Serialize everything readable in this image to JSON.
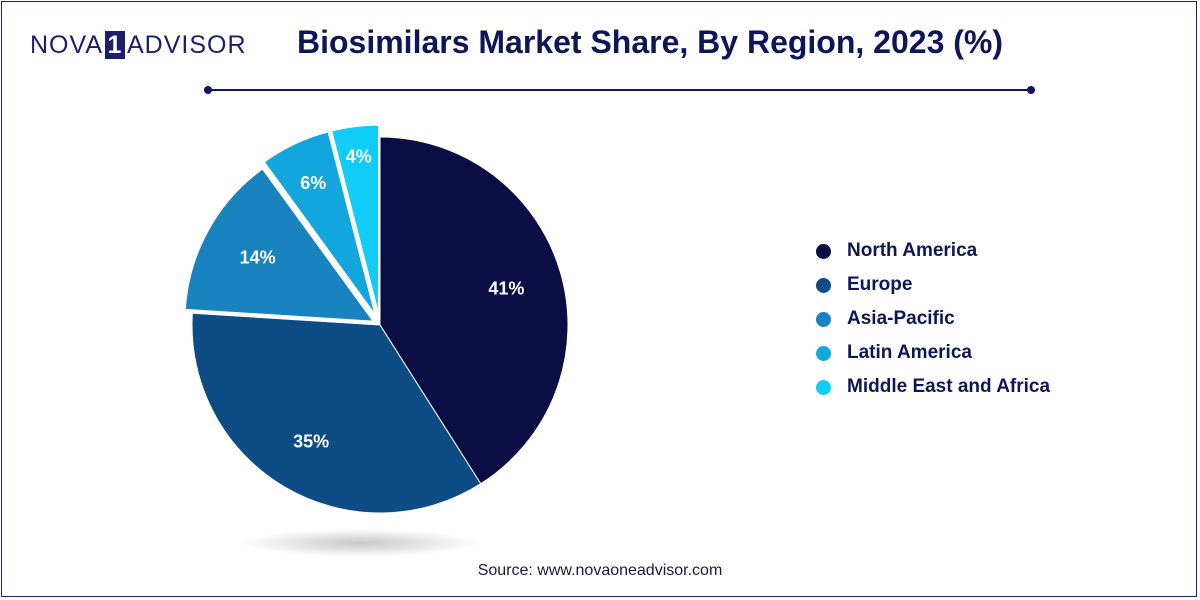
{
  "brand": {
    "left": "NOVA",
    "mid": "1",
    "right": "ADVISOR"
  },
  "source": "Source: www.novaoneadvisor.com",
  "chart_data": {
    "type": "pie",
    "title": "Biosimilars Market Share, By Region, 2023 (%)",
    "legend_position": "right",
    "slices": [
      {
        "label": "North America",
        "value": 41,
        "display": "41%",
        "color": "#0b0d45"
      },
      {
        "label": "Europe",
        "value": 35,
        "display": "35%",
        "color": "#0e4c86"
      },
      {
        "label": "Asia-Pacific",
        "value": 14,
        "display": "14%",
        "color": "#1883be"
      },
      {
        "label": "Latin America",
        "value": 6,
        "display": "6%",
        "color": "#12a6dd"
      },
      {
        "label": "Middle East and Africa",
        "value": 4,
        "display": "4%",
        "color": "#12ccf8"
      }
    ]
  }
}
